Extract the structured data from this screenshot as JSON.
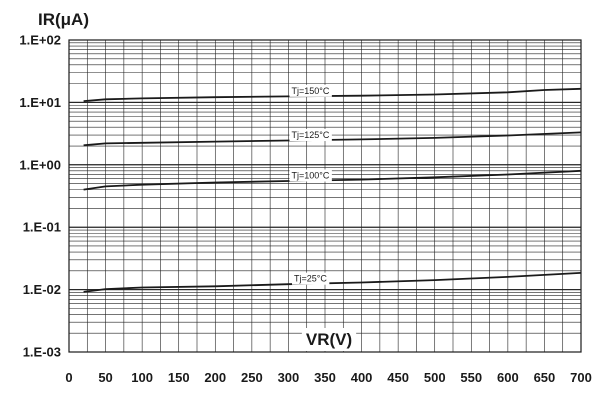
{
  "chart_data": {
    "type": "line",
    "ylabel": "IR(μA)",
    "xlabel": "VR(V)",
    "yscale": "log",
    "xlim": [
      0,
      700
    ],
    "ylim": [
      0.001,
      100
    ],
    "x_ticks": [
      "0",
      "50",
      "100",
      "150",
      "200",
      "250",
      "300",
      "350",
      "400",
      "450",
      "500",
      "550",
      "600",
      "650",
      "700"
    ],
    "y_ticks": [
      "1.E+02",
      "1.E+01",
      "1.E+00",
      "1.E-01",
      "1.E-02",
      "1.E-03"
    ],
    "grid": true,
    "series": [
      {
        "name": "Tj=150°C",
        "label_x": 300,
        "x": [
          20,
          50,
          100,
          200,
          300,
          400,
          500,
          600,
          650,
          700
        ],
        "values": [
          10.5,
          11.2,
          11.6,
          12.1,
          12.5,
          12.8,
          13.4,
          14.5,
          15.8,
          16.5
        ]
      },
      {
        "name": "Tj=125°C",
        "label_x": 300,
        "x": [
          20,
          50,
          100,
          200,
          300,
          400,
          500,
          600,
          700
        ],
        "values": [
          2.05,
          2.2,
          2.25,
          2.35,
          2.45,
          2.55,
          2.7,
          2.95,
          3.3
        ]
      },
      {
        "name": "Tj=100°C",
        "label_x": 300,
        "x": [
          20,
          50,
          100,
          200,
          300,
          400,
          500,
          600,
          700
        ],
        "values": [
          0.4,
          0.45,
          0.48,
          0.52,
          0.55,
          0.58,
          0.63,
          0.7,
          0.8
        ]
      },
      {
        "name": "Tj=25°C",
        "label_x": 300,
        "x": [
          20,
          50,
          100,
          200,
          300,
          400,
          500,
          600,
          700
        ],
        "values": [
          0.0092,
          0.0102,
          0.0108,
          0.0113,
          0.0122,
          0.013,
          0.0142,
          0.016,
          0.0185
        ]
      }
    ]
  }
}
